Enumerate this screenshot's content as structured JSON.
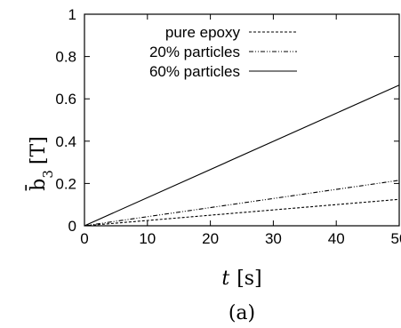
{
  "chart_data": {
    "type": "line",
    "xlabel": "t [s]",
    "ylabel": "b̄3 [T]",
    "xlim": [
      0,
      50
    ],
    "ylim": [
      0,
      1
    ],
    "x_ticks": [
      "0",
      "10",
      "20",
      "30",
      "40",
      "50"
    ],
    "y_ticks": [
      "0",
      "0.2",
      "0.4",
      "0.6",
      "0.8",
      "1"
    ],
    "grid": false,
    "legend_position": "top-left",
    "caption": "(a)",
    "series": [
      {
        "name": "pure epoxy",
        "style": "dashed",
        "x": [
          0,
          50
        ],
        "values": [
          0,
          0.125
        ]
      },
      {
        "name": "20% particles",
        "style": "dash-dot-dot",
        "x": [
          0,
          50
        ],
        "values": [
          0,
          0.215
        ]
      },
      {
        "name": "60% particles",
        "style": "solid",
        "x": [
          0,
          50
        ],
        "values": [
          0,
          0.665
        ]
      }
    ]
  }
}
